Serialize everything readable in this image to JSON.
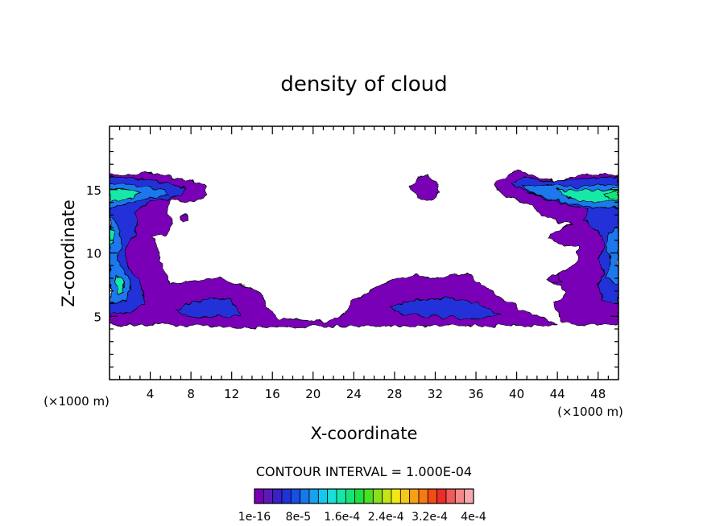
{
  "chart_data": {
    "type": "heatmap",
    "title": "density of cloud",
    "xlabel": "X-coordinate",
    "ylabel": "Z-coordinate",
    "x_unit": "(×1000 m)",
    "y_unit": "(×1000 m)",
    "xlim": [
      0,
      50
    ],
    "ylim": [
      0,
      20
    ],
    "xticks": [
      4,
      8,
      12,
      16,
      20,
      24,
      28,
      32,
      36,
      40,
      44,
      48
    ],
    "yticks": [
      5,
      10,
      15
    ],
    "contour_interval": "CONTOUR INTERVAL = 1.000E-04",
    "colorbar": {
      "labels": [
        "1e-16",
        "8e-5",
        "1.6e-4",
        "2.4e-4",
        "3.2e-4",
        "4e-4"
      ],
      "colors": [
        "#7a00b8",
        "#5a1ab8",
        "#3a20c8",
        "#2032d8",
        "#1850e0",
        "#1a78ec",
        "#18a2ee",
        "#14c8f0",
        "#16e0d8",
        "#14e8a8",
        "#16e478",
        "#1ee040",
        "#4ce024",
        "#8ae01e",
        "#c4e414",
        "#f4e814",
        "#f8c814",
        "#f8a014",
        "#f87814",
        "#f04c18",
        "#ec2c28",
        "#f05a5a",
        "#f48888",
        "#f8a8a8"
      ]
    },
    "regions": [
      {
        "name": "left-upper-plume",
        "x_range": [
          0,
          10
        ],
        "z_range": [
          12,
          16.2
        ],
        "max_level": "1.6e-4"
      },
      {
        "name": "left-column",
        "x_range": [
          0,
          6
        ],
        "z_range": [
          4.5,
          12
        ],
        "max_level": "1.6e-4"
      },
      {
        "name": "lower-left-band",
        "x_range": [
          0,
          16
        ],
        "z_range": [
          4.2,
          7.5
        ],
        "max_level": "8e-5"
      },
      {
        "name": "central-band",
        "x_range": [
          22,
          40
        ],
        "z_range": [
          4.2,
          8.2
        ],
        "max_level": "8e-5"
      },
      {
        "name": "small-cloud",
        "x_range": [
          29.5,
          32.5
        ],
        "z_range": [
          14.2,
          16.3
        ],
        "max_level": "1e-16"
      },
      {
        "name": "right-upper-plume",
        "x_range": [
          38,
          50
        ],
        "z_range": [
          12,
          16.8
        ],
        "max_level": "1.6e-4"
      },
      {
        "name": "right-column",
        "x_range": [
          43,
          50
        ],
        "z_range": [
          5.5,
          12
        ],
        "max_level": "1.6e-4"
      }
    ]
  }
}
